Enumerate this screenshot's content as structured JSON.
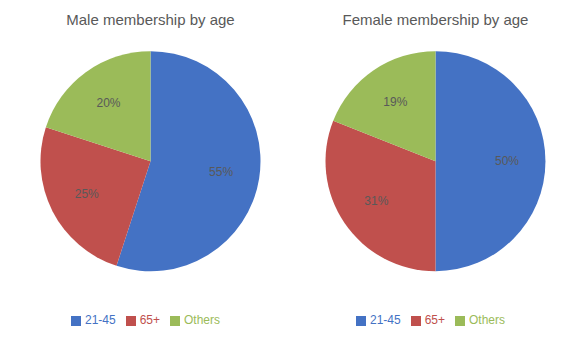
{
  "chart_data": [
    {
      "type": "pie",
      "title": "Male membership by age",
      "categories": [
        "21-45",
        "65+",
        "Others"
      ],
      "values": [
        55,
        25,
        20
      ],
      "value_labels": [
        "55%",
        "25%",
        "20%"
      ],
      "colors": [
        "#4472C4",
        "#C0504D",
        "#9BBB59"
      ],
      "data_labels": true,
      "legend": "bottom"
    },
    {
      "type": "pie",
      "title": "Female membership by age",
      "categories": [
        "21-45",
        "65+",
        "Others"
      ],
      "values": [
        50,
        31,
        19
      ],
      "value_labels": [
        "50%",
        "31%",
        "19%"
      ],
      "colors": [
        "#4472C4",
        "#C0504D",
        "#9BBB59"
      ],
      "data_labels": true,
      "legend": "bottom"
    }
  ]
}
